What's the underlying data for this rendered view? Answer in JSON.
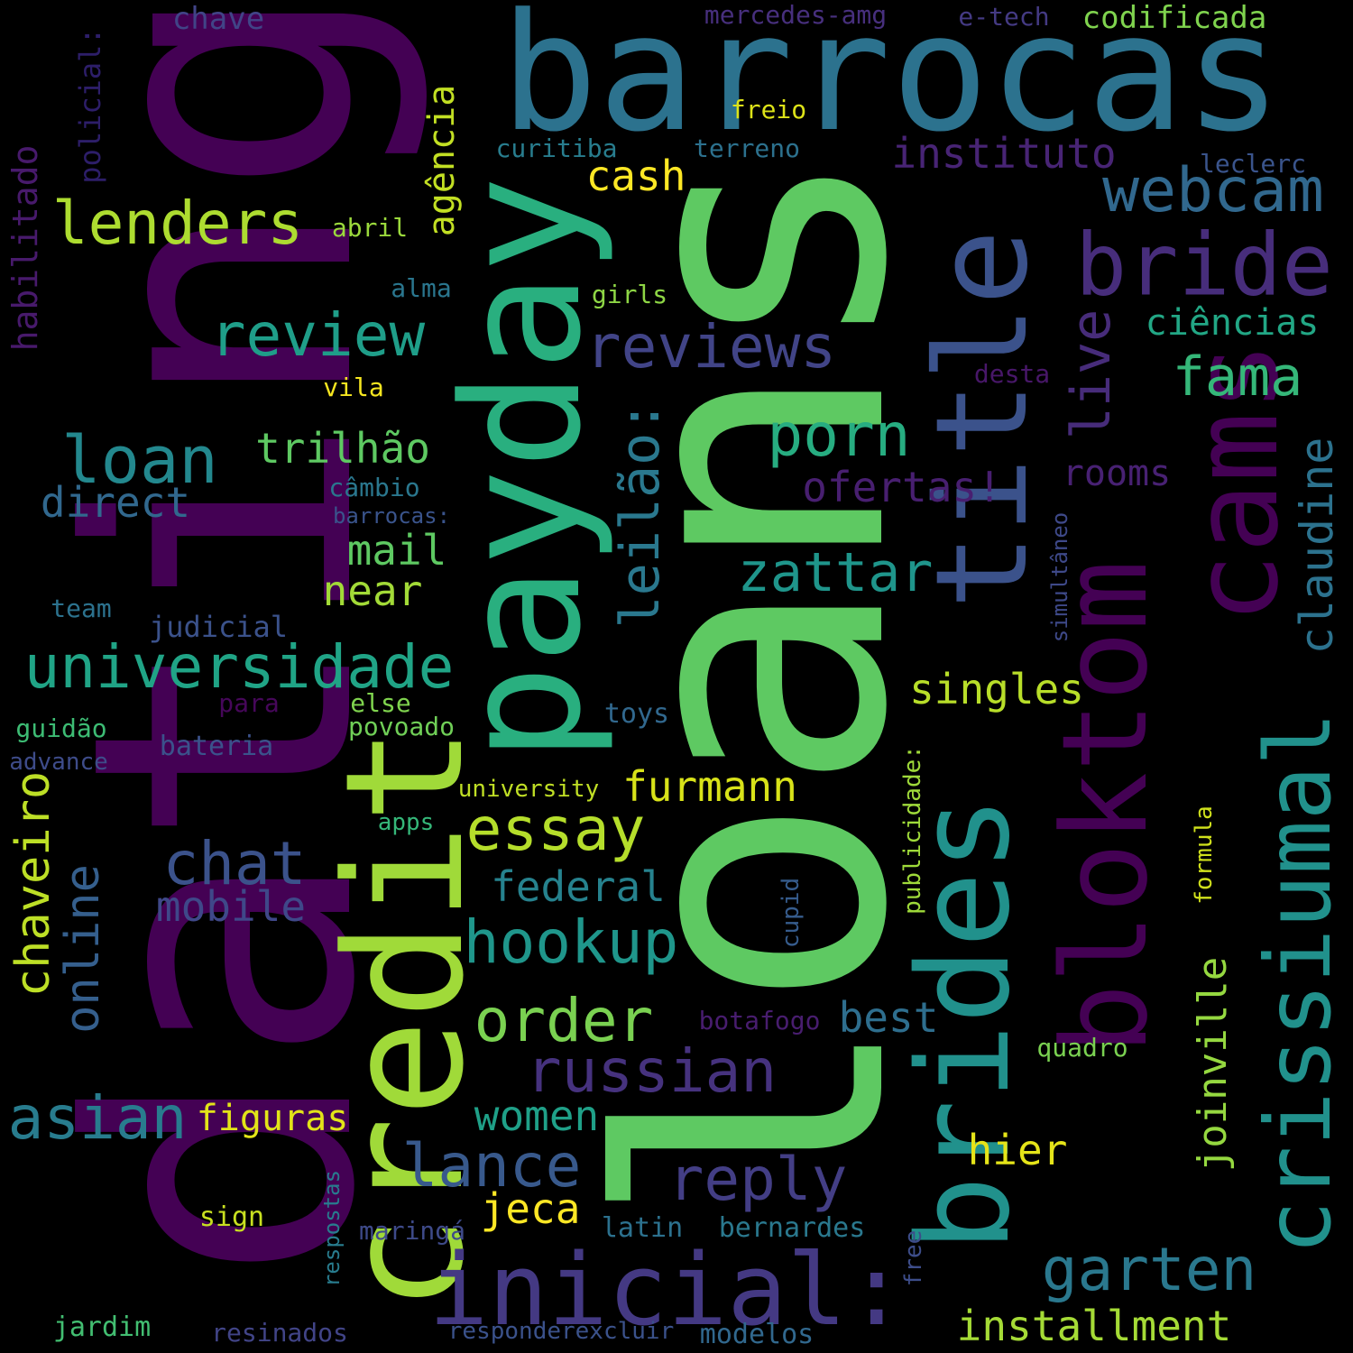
{
  "words": [
    {
      "id": "loans",
      "text": "loans",
      "color": "#5ec962"
    },
    {
      "id": "dating",
      "text": "dating",
      "color": "#440154"
    },
    {
      "id": "barrocas",
      "text": "barrocas",
      "color": "#2c728e"
    },
    {
      "id": "credit",
      "text": "credit",
      "color": "#a0da39"
    },
    {
      "id": "payday",
      "text": "payday",
      "color": "#29af7f"
    },
    {
      "id": "brides",
      "text": "brides",
      "color": "#21918c"
    },
    {
      "id": "title",
      "text": "title",
      "color": "#3b528b"
    },
    {
      "id": "cams",
      "text": "cams",
      "color": "#440154"
    },
    {
      "id": "bloktom",
      "text": "bloktom",
      "color": "#440154"
    },
    {
      "id": "crissiumal",
      "text": "crissiumal",
      "color": "#21918c"
    },
    {
      "id": "inicial",
      "text": "inicial:",
      "color": "#443983"
    },
    {
      "id": "bride",
      "text": "bride",
      "color": "#472d7b"
    },
    {
      "id": "webcam",
      "text": "webcam",
      "color": "#31688e"
    },
    {
      "id": "lenders",
      "text": "lenders",
      "color": "#addc30"
    },
    {
      "id": "review",
      "text": "review",
      "color": "#1f9e89"
    },
    {
      "id": "reviews",
      "text": "reviews",
      "color": "#414487"
    },
    {
      "id": "universidade",
      "text": "universidade",
      "color": "#20a486"
    },
    {
      "id": "loan",
      "text": "loan",
      "color": "#23888e"
    },
    {
      "id": "direct",
      "text": "direct",
      "color": "#31688e"
    },
    {
      "id": "porn",
      "text": "porn",
      "color": "#27ad81"
    },
    {
      "id": "fama",
      "text": "fama",
      "color": "#35b779"
    },
    {
      "id": "leilao",
      "text": "leilão:",
      "color": "#2a788e"
    },
    {
      "id": "live",
      "text": "live",
      "color": "#472c7a"
    },
    {
      "id": "claudine",
      "text": "claudine",
      "color": "#2c728e"
    },
    {
      "id": "zattar",
      "text": "zattar",
      "color": "#1f958b"
    },
    {
      "id": "essay",
      "text": "essay",
      "color": "#b5de2b"
    },
    {
      "id": "hookup",
      "text": "hookup",
      "color": "#1f968b"
    },
    {
      "id": "chat",
      "text": "chat",
      "color": "#3b528b"
    },
    {
      "id": "chaveiro",
      "text": "chaveiro",
      "color": "#bddf26"
    },
    {
      "id": "online",
      "text": "online",
      "color": "#355f8d"
    },
    {
      "id": "asian",
      "text": "asian",
      "color": "#287c8e"
    },
    {
      "id": "order",
      "text": "order",
      "color": "#7ad151"
    },
    {
      "id": "russian",
      "text": "russian",
      "color": "#46327e"
    },
    {
      "id": "reply",
      "text": "reply",
      "color": "#433e85"
    },
    {
      "id": "lance",
      "text": "lance",
      "color": "#38598c"
    },
    {
      "id": "garten",
      "text": "garten",
      "color": "#2a788e"
    },
    {
      "id": "installment",
      "text": "installment",
      "color": "#a5db36"
    },
    {
      "id": "joinville",
      "text": "joinville",
      "color": "#95d840"
    },
    {
      "id": "singles",
      "text": "singles",
      "color": "#b8de29"
    },
    {
      "id": "furmann",
      "text": "furmann",
      "color": "#d8e219"
    },
    {
      "id": "trilhao",
      "text": "trilhão",
      "color": "#5ec962"
    },
    {
      "id": "mail",
      "text": "mail",
      "color": "#5ec962"
    },
    {
      "id": "near",
      "text": "near",
      "color": "#a2da37"
    },
    {
      "id": "cash",
      "text": "cash",
      "color": "#fde725"
    },
    {
      "id": "instituto",
      "text": "instituto",
      "color": "#482475"
    },
    {
      "id": "ciencias",
      "text": "ciências",
      "color": "#22a785"
    },
    {
      "id": "rooms",
      "text": "rooms",
      "color": "#482173"
    },
    {
      "id": "ofertas",
      "text": "ofertas!",
      "color": "#481f70"
    },
    {
      "id": "agencia",
      "text": "agência",
      "color": "#c2df23"
    },
    {
      "id": "habilitado",
      "text": "habilitado",
      "color": "#481a6c"
    },
    {
      "id": "policial",
      "text": "policial:",
      "color": "#2d1e69"
    },
    {
      "id": "chave",
      "text": "chave",
      "color": "#414487"
    },
    {
      "id": "mercedes",
      "text": "mercedes-amg",
      "color": "#472f7d"
    },
    {
      "id": "etech",
      "text": "e-tech",
      "color": "#443a83"
    },
    {
      "id": "codificada",
      "text": "codificada",
      "color": "#7fd34e"
    },
    {
      "id": "freio",
      "text": "freio",
      "color": "#dde318"
    },
    {
      "id": "curitiba",
      "text": "curitiba",
      "color": "#287d8e"
    },
    {
      "id": "terreno",
      "text": "terreno",
      "color": "#2c718e"
    },
    {
      "id": "leclerc",
      "text": "leclerc",
      "color": "#3a548c"
    },
    {
      "id": "abril",
      "text": "abril",
      "color": "#9bd93c"
    },
    {
      "id": "alma",
      "text": "alma",
      "color": "#2a768e"
    },
    {
      "id": "girls",
      "text": "girls",
      "color": "#8ed645"
    },
    {
      "id": "vila",
      "text": "vila",
      "color": "#f6e620"
    },
    {
      "id": "desta",
      "text": "desta",
      "color": "#481769"
    },
    {
      "id": "federal",
      "text": "federal",
      "color": "#26828e"
    },
    {
      "id": "mobile",
      "text": "mobile",
      "color": "#3f4889"
    },
    {
      "id": "figuras",
      "text": "figuras",
      "color": "#e2e418"
    },
    {
      "id": "women",
      "text": "women",
      "color": "#1fa088"
    },
    {
      "id": "best",
      "text": "best",
      "color": "#2e6e8e"
    },
    {
      "id": "hier",
      "text": "hier",
      "color": "#e5e419"
    },
    {
      "id": "jeca",
      "text": "jeca",
      "color": "#fde725"
    },
    {
      "id": "cambio",
      "text": "câmbio",
      "color": "#2a778e"
    },
    {
      "id": "barrocas2",
      "text": "barrocas:",
      "color": "#3a548c"
    },
    {
      "id": "simultaneo",
      "text": "simultâneo",
      "color": "#3e4989"
    },
    {
      "id": "team",
      "text": "team",
      "color": "#2c728e"
    },
    {
      "id": "judicial",
      "text": "judicial",
      "color": "#3b528b"
    },
    {
      "id": "para",
      "text": "para",
      "color": "#46075a"
    },
    {
      "id": "else",
      "text": "else",
      "color": "#7fd34e"
    },
    {
      "id": "toys",
      "text": "toys",
      "color": "#31688e"
    },
    {
      "id": "guidao",
      "text": "guidão",
      "color": "#3dbc74"
    },
    {
      "id": "advance",
      "text": "advance",
      "color": "#3e4c8a"
    },
    {
      "id": "bateria",
      "text": "bateria",
      "color": "#3b528b"
    },
    {
      "id": "povoado",
      "text": "povoado",
      "color": "#70cf57"
    },
    {
      "id": "publicidade",
      "text": "publicidade:",
      "color": "#9fda3a"
    },
    {
      "id": "university",
      "text": "university",
      "color": "#c0df25"
    },
    {
      "id": "apps",
      "text": "apps",
      "color": "#35b779"
    },
    {
      "id": "formula",
      "text": "formula",
      "color": "#d0e11c"
    },
    {
      "id": "cupid",
      "text": "cupid",
      "color": "#365c8d"
    },
    {
      "id": "botafogo",
      "text": "botafogo",
      "color": "#481d6f"
    },
    {
      "id": "quadro",
      "text": "quadro",
      "color": "#7ad151"
    },
    {
      "id": "respostas",
      "text": "respostas",
      "color": "#287c8e"
    },
    {
      "id": "sign",
      "text": "sign",
      "color": "#c8e020"
    },
    {
      "id": "maringa",
      "text": "maringá",
      "color": "#3e4a89"
    },
    {
      "id": "latin",
      "text": "latin",
      "color": "#2c718e"
    },
    {
      "id": "bernardes",
      "text": "bernardes",
      "color": "#2a788e"
    },
    {
      "id": "free",
      "text": "free",
      "color": "#3d4d8a"
    },
    {
      "id": "jardim",
      "text": "jardim",
      "color": "#42be71"
    },
    {
      "id": "resinados",
      "text": "resinados",
      "color": "#414487"
    },
    {
      "id": "responderexcluir",
      "text": "responderexcluir",
      "color": "#3b528b"
    },
    {
      "id": "modelos",
      "text": "modelos",
      "color": "#31688e"
    }
  ]
}
